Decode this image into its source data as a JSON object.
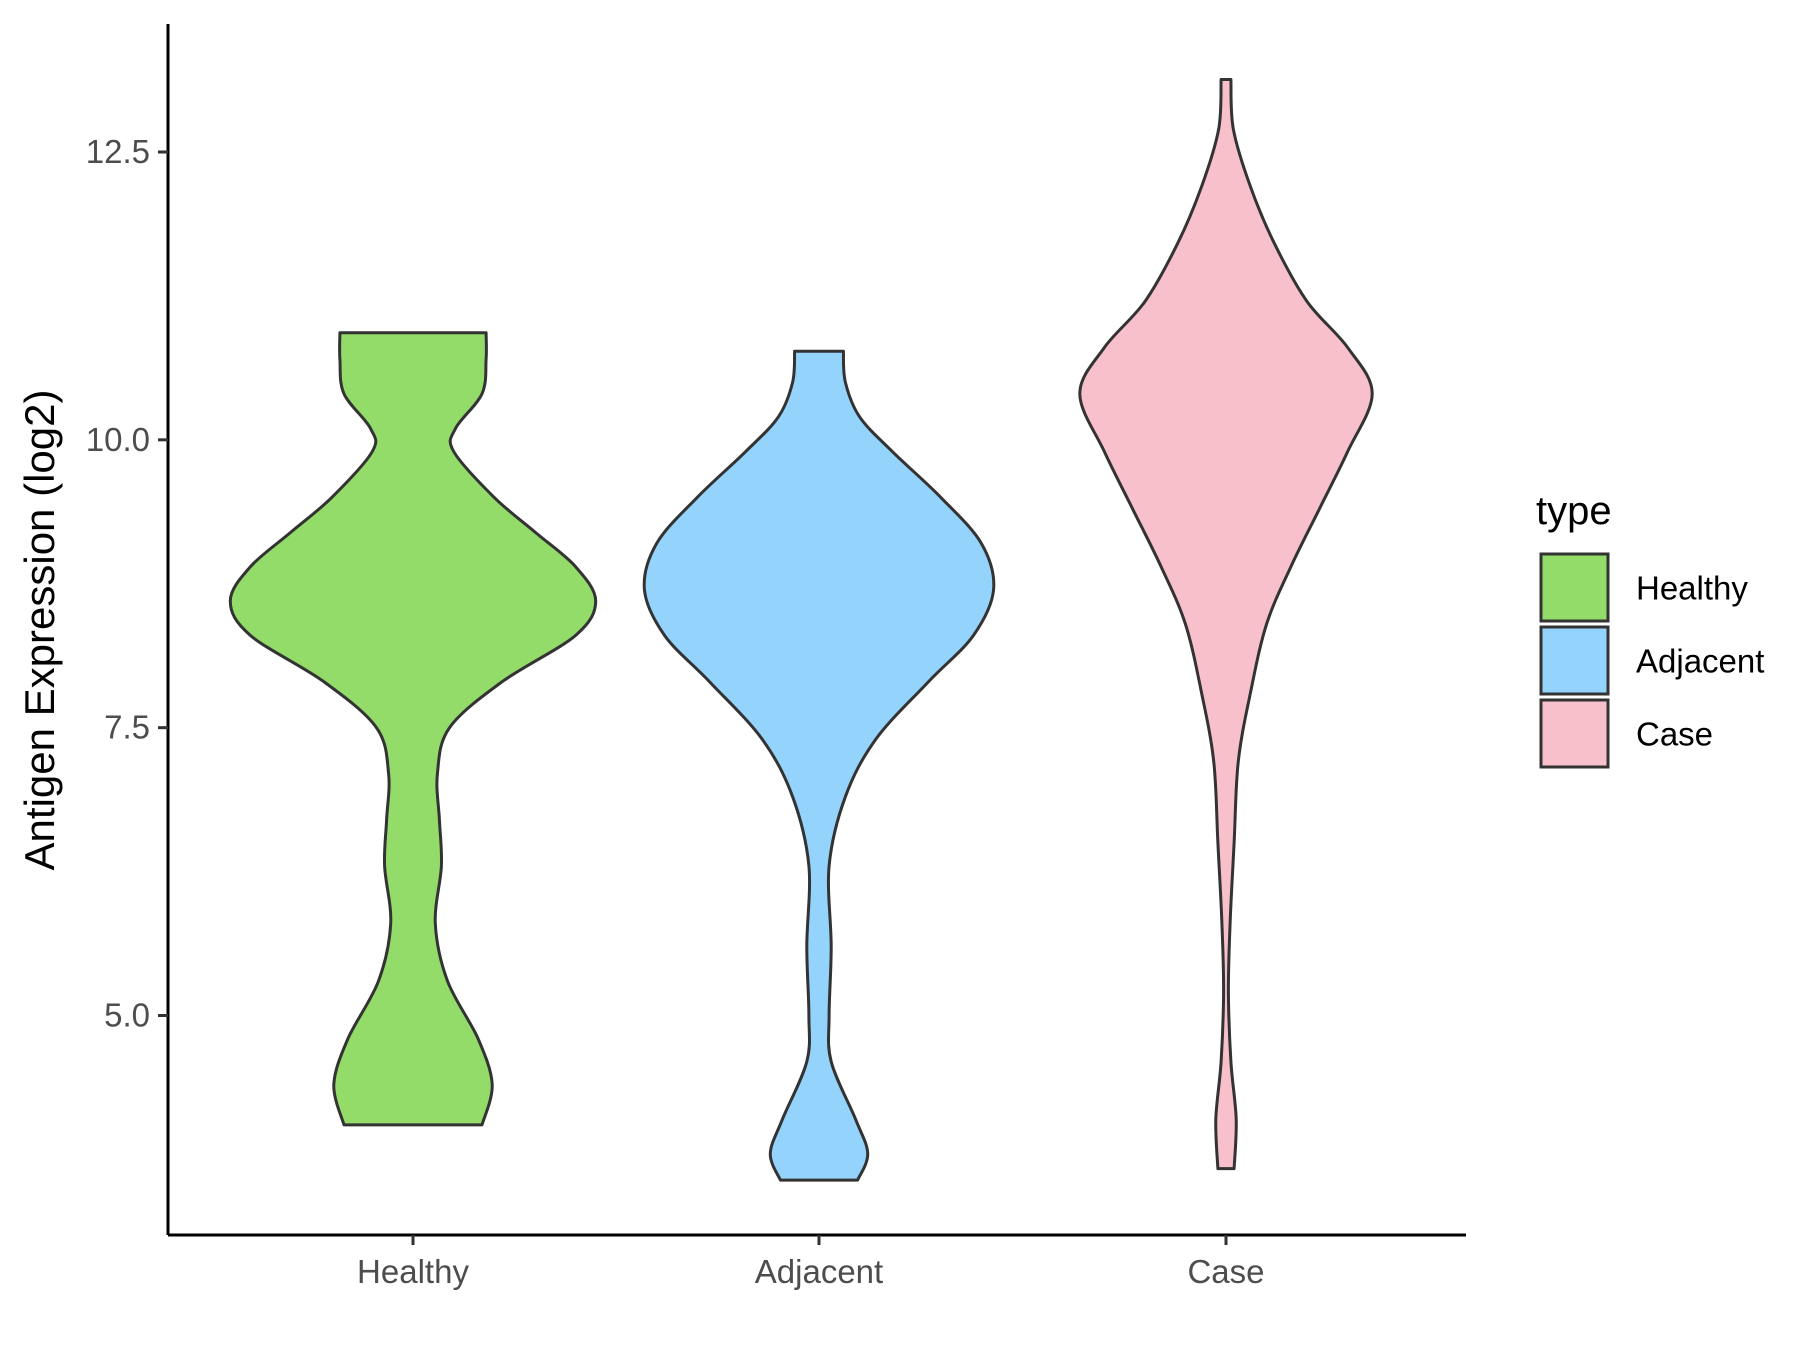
{
  "chart_data": {
    "type": "violin",
    "title": "",
    "xlabel": "",
    "ylabel": "Antigen Expression (log2)",
    "ylim": [
      3.0,
      13.6
    ],
    "yticks": [
      "5.0",
      "7.5",
      "10.0",
      "12.5"
    ],
    "ytick_values": [
      5.0,
      7.5,
      10.0,
      12.5
    ],
    "categories": [
      "Healthy",
      "Adjacent",
      "Case"
    ],
    "legend": {
      "title": "type",
      "position": "right",
      "entries": [
        "Healthy",
        "Adjacent",
        "Case"
      ]
    },
    "grid": false,
    "series": [
      {
        "category": "Healthy",
        "color": "#93DC6A",
        "min": 4.05,
        "max": 10.93,
        "density_y": [
          4.05,
          4.4,
          4.8,
          5.3,
          5.8,
          6.3,
          6.7,
          7.1,
          7.5,
          7.9,
          8.3,
          8.6,
          8.9,
          9.2,
          9.5,
          9.9,
          10.1,
          10.4,
          10.7,
          10.93
        ],
        "half_width": [
          0.17,
          0.195,
          0.16,
          0.085,
          0.055,
          0.07,
          0.065,
          0.06,
          0.09,
          0.22,
          0.4,
          0.45,
          0.4,
          0.3,
          0.2,
          0.1,
          0.105,
          0.17,
          0.18,
          0.18
        ]
      },
      {
        "category": "Adjacent",
        "color": "#94D3FC",
        "min": 3.57,
        "max": 10.77,
        "density_y": [
          3.57,
          3.8,
          4.1,
          4.6,
          5.0,
          5.6,
          6.3,
          6.9,
          7.4,
          7.9,
          8.3,
          8.7,
          9.1,
          9.5,
          9.9,
          10.2,
          10.5,
          10.77
        ],
        "half_width": [
          0.095,
          0.12,
          0.09,
          0.03,
          0.025,
          0.03,
          0.025,
          0.065,
          0.14,
          0.27,
          0.38,
          0.43,
          0.4,
          0.3,
          0.18,
          0.1,
          0.065,
          0.06
        ]
      },
      {
        "category": "Case",
        "color": "#F7C0CB",
        "min": 3.67,
        "max": 13.13,
        "density_y": [
          3.67,
          4.1,
          4.6,
          5.2,
          5.8,
          6.5,
          7.2,
          7.8,
          8.4,
          8.9,
          9.4,
          9.9,
          10.4,
          10.8,
          11.2,
          11.7,
          12.2,
          12.7,
          13.13
        ],
        "half_width": [
          0.02,
          0.025,
          0.012,
          0.006,
          0.01,
          0.02,
          0.03,
          0.06,
          0.1,
          0.16,
          0.23,
          0.3,
          0.36,
          0.3,
          0.2,
          0.12,
          0.06,
          0.018,
          0.012
        ]
      }
    ]
  }
}
